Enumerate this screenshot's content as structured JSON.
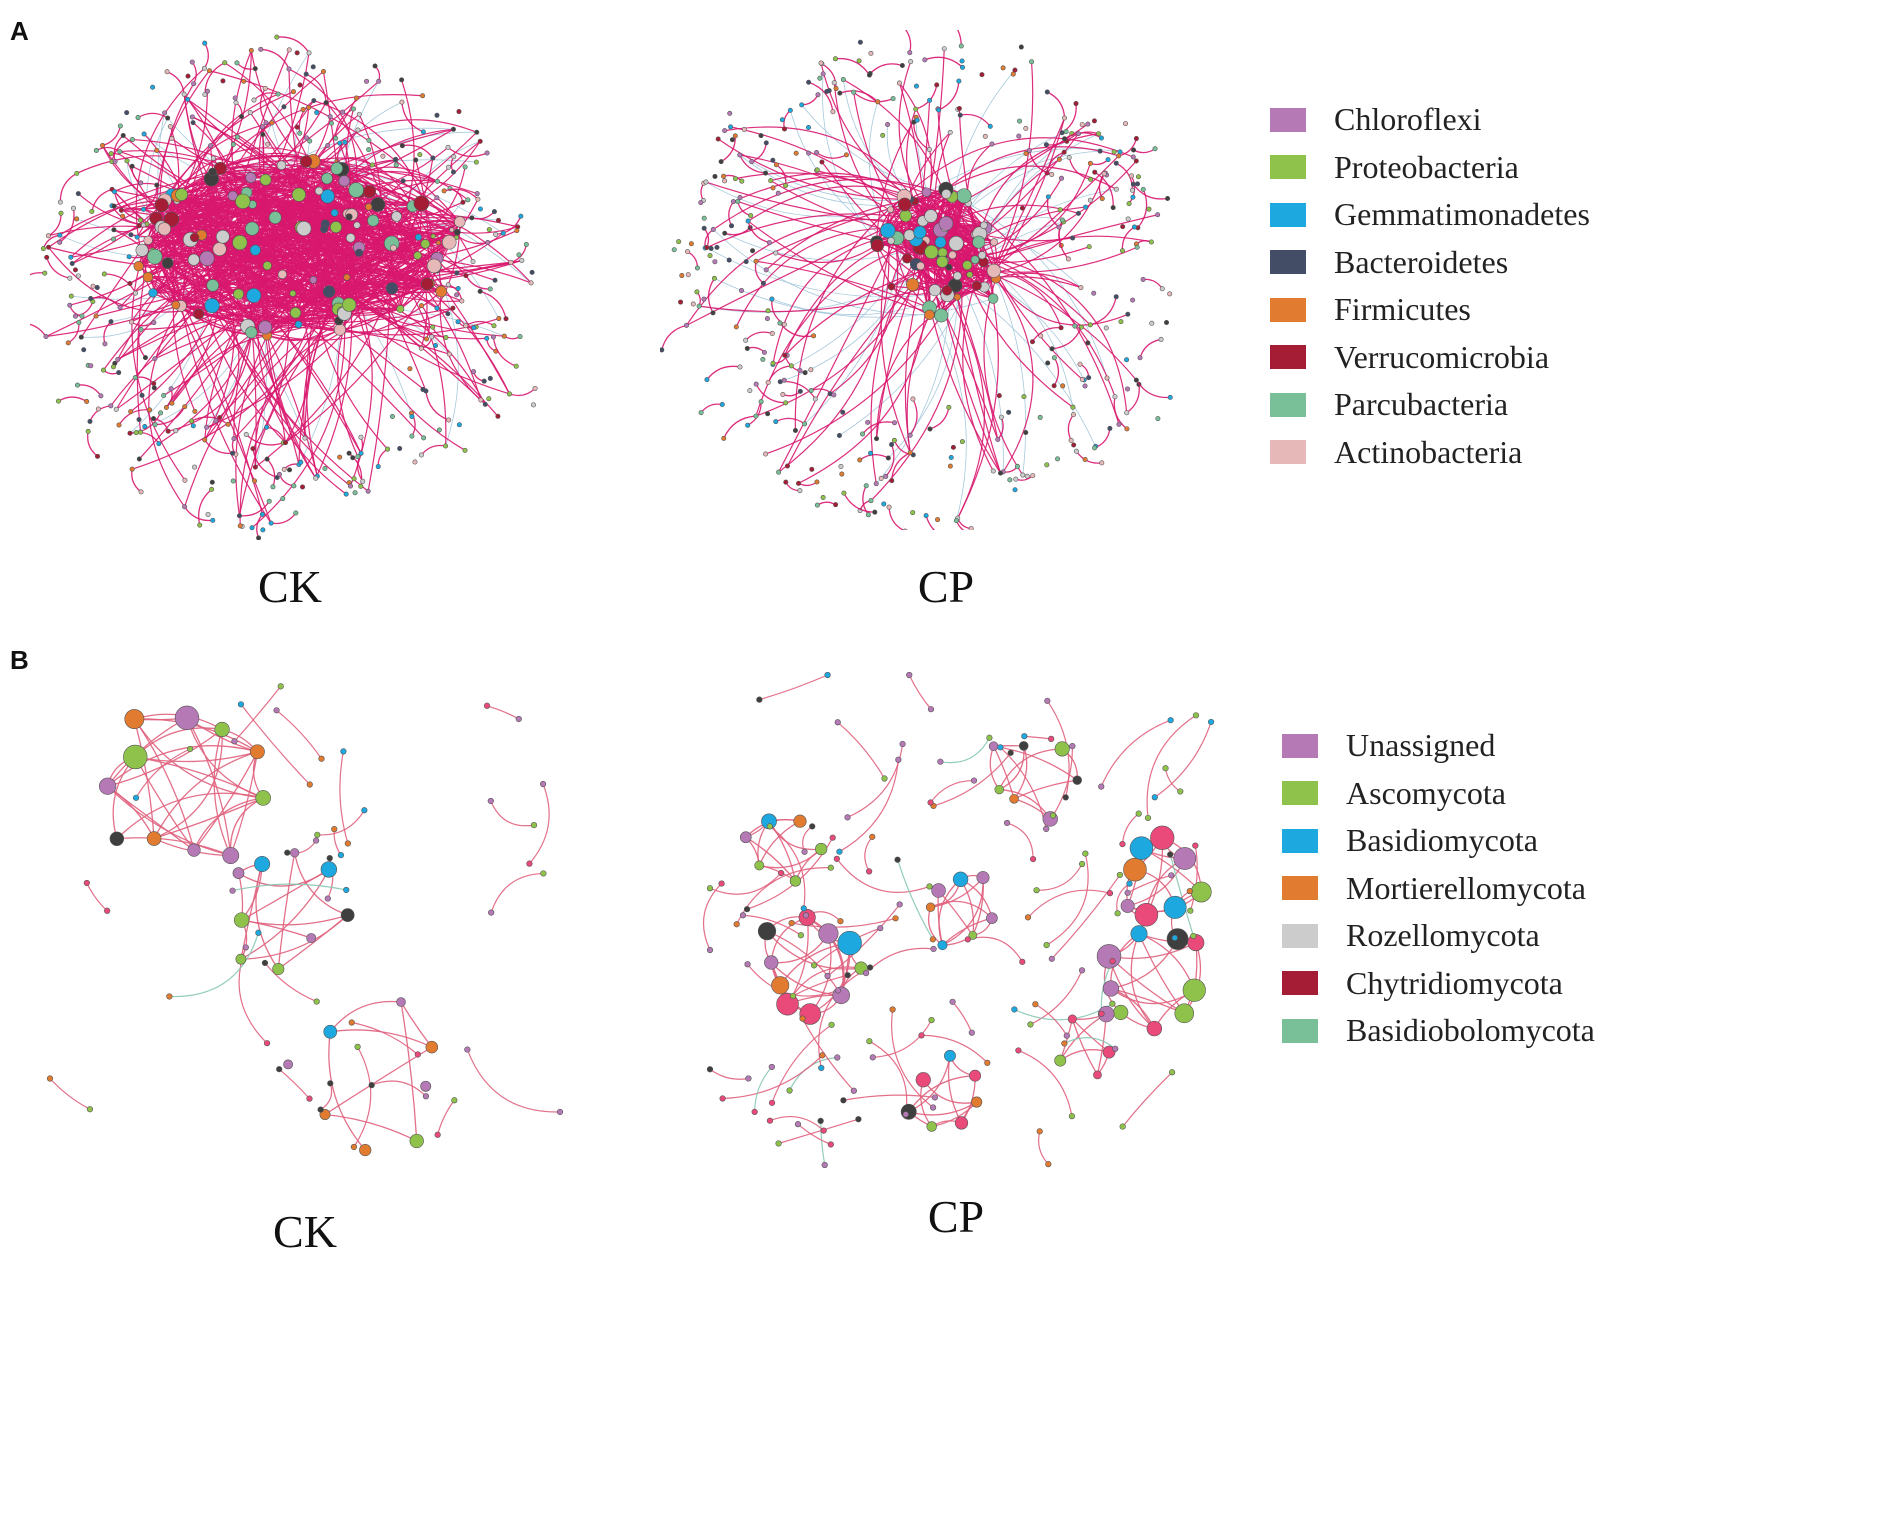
{
  "panels": [
    {
      "letter": "A",
      "networks": [
        {
          "label": "CK",
          "type": "dense"
        },
        {
          "label": "CP",
          "type": "core"
        }
      ],
      "legend": [
        {
          "name": "Chloroflexi",
          "color": "#b57ab5"
        },
        {
          "name": "Proteobacteria",
          "color": "#8fc24b"
        },
        {
          "name": "Gemmatimonadetes",
          "color": "#1ea8e0"
        },
        {
          "name": "Bacteroidetes",
          "color": "#434d66"
        },
        {
          "name": "Firmicutes",
          "color": "#e07b30"
        },
        {
          "name": "Verrucomicrobia",
          "color": "#a41d35"
        },
        {
          "name": "Parcubacteria",
          "color": "#79c099"
        },
        {
          "name": "Actinobacteria",
          "color": "#e6b8b8"
        },
        {
          "name": "",
          "color": "#cccccc"
        }
      ]
    },
    {
      "letter": "B",
      "networks": [
        {
          "label": "CK",
          "type": "sparse"
        },
        {
          "label": "CP",
          "type": "clusters"
        }
      ],
      "legend": [
        {
          "name": "Unassigned",
          "color": "#b57ab5"
        },
        {
          "name": "Ascomycota",
          "color": "#8fc24b"
        },
        {
          "name": "Basidiomycota",
          "color": "#1ea8e0"
        },
        {
          "name": "Mortierellomycota",
          "color": "#e07b30"
        },
        {
          "name": "Rozellomycota",
          "color": "#cccccc"
        },
        {
          "name": "Chytridiomycota",
          "color": "#a41d35"
        },
        {
          "name": "Basidiobolomycota",
          "color": "#79c099"
        }
      ]
    }
  ],
  "colors": {
    "positive_edge": "#d8176e",
    "negative_edge": "#9cc3d8",
    "fungal_edge": "#e0607d",
    "fungal_negative_edge": "#86c8b2",
    "dark_node": "#3f3f3f",
    "pink_node": "#e94a7a",
    "node_stroke": "#555555"
  }
}
